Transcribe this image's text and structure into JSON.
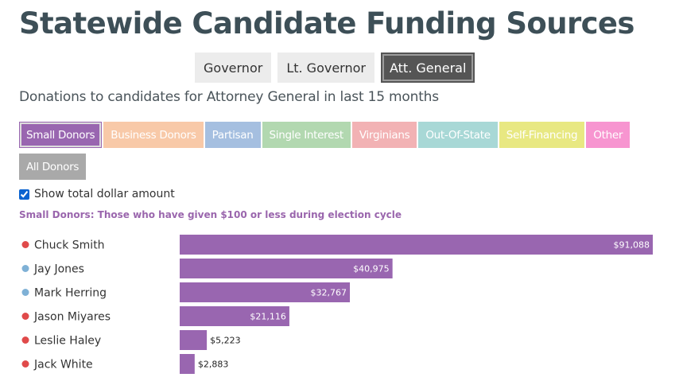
{
  "page": {
    "title": "Statewide Candidate Funding Sources",
    "subtitle": "Donations to candidates for Attorney General in last 15 months",
    "description": "Small Donors: Those who have given $100 or less during election cycle"
  },
  "office_tabs": [
    {
      "label": "Governor",
      "active": false
    },
    {
      "label": "Lt. Governor",
      "active": false
    },
    {
      "label": "Att. General",
      "active": true
    }
  ],
  "source_tabs": [
    {
      "label": "Small Donors",
      "color": "#9966b0",
      "active": true
    },
    {
      "label": "Business Donors",
      "color": "#f8c9a8",
      "active": false
    },
    {
      "label": "Partisan",
      "color": "#a5bfe0",
      "active": false
    },
    {
      "label": "Single Interest",
      "color": "#b2d8b0",
      "active": false
    },
    {
      "label": "Virginians",
      "color": "#f2b2b4",
      "active": false
    },
    {
      "label": "Out-Of-State",
      "color": "#a8d8d6",
      "active": false
    },
    {
      "label": "Self-Financing",
      "color": "#e8e882",
      "active": false
    },
    {
      "label": "Other",
      "color": "#f795d0",
      "active": false
    },
    {
      "label": "All Donors",
      "color": "#a9a9a9",
      "active": false
    }
  ],
  "toggle": {
    "label": "Show total dollar amount",
    "checked": true
  },
  "party_colors": {
    "R": "#e04a4a",
    "D": "#7fb1d6"
  },
  "bar_color": "#9966b0",
  "chart_data": {
    "type": "bar",
    "orientation": "horizontal",
    "categories": [
      "Chuck Smith",
      "Jay Jones",
      "Mark Herring",
      "Jason Miyares",
      "Leslie Haley",
      "Jack White"
    ],
    "party": [
      "R",
      "D",
      "D",
      "R",
      "R",
      "R"
    ],
    "values": [
      91088,
      40975,
      32767,
      21116,
      5223,
      2883
    ],
    "value_labels": [
      "$91,088",
      "$40,975",
      "$32,767",
      "$21,116",
      "$5,223",
      "$2,883"
    ],
    "xlim": [
      0,
      91088
    ]
  }
}
